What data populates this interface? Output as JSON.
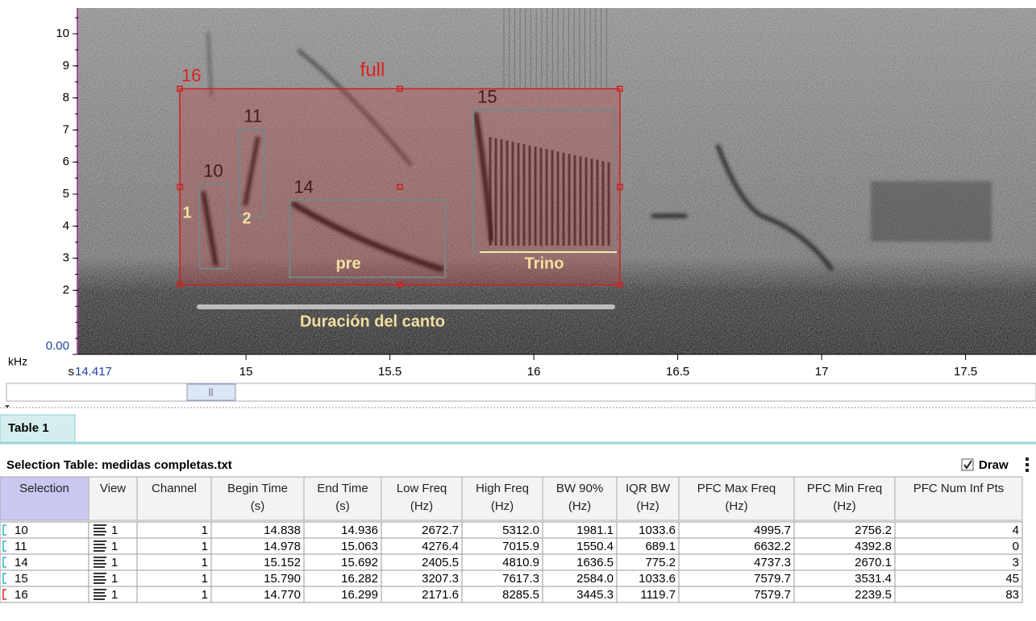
{
  "spectrogram": {
    "y_unit": "kHz",
    "yticks": [
      "10",
      "9",
      "8",
      "7",
      "6",
      "5",
      "4",
      "3",
      "2",
      "0.00"
    ],
    "time_unit": "s",
    "time_start": "14.417",
    "xticks": [
      "15",
      "15.5",
      "16",
      "16.5",
      "17",
      "17.5"
    ]
  },
  "annotations": {
    "full": "full",
    "mark_1": "1",
    "mark_2": "2",
    "pre": "pre",
    "trill": "Trino",
    "duration": "Duración del canto"
  },
  "tab": "Table 1",
  "table_title": "Selection Table: medidas completas.txt",
  "draw": "Draw",
  "table": {
    "columns": [
      [
        "Selection"
      ],
      [
        "View"
      ],
      [
        "Channel"
      ],
      [
        "Begin Time",
        "(s)"
      ],
      [
        "End Time",
        "(s)"
      ],
      [
        "Low Freq",
        "(Hz)"
      ],
      [
        "High Freq",
        "(Hz)"
      ],
      [
        "BW 90%",
        "(Hz)"
      ],
      [
        "IQR BW",
        "(Hz)"
      ],
      [
        "PFC Max Freq",
        "(Hz)"
      ],
      [
        "PFC Min Freq",
        "(Hz)"
      ],
      [
        "PFC Num Inf Pts"
      ]
    ],
    "rows": [
      [
        "10",
        "1",
        "1",
        "14.838",
        "14.936",
        "2672.7",
        "5312.0",
        "1981.1",
        "1033.6",
        "4995.7",
        "2756.2",
        "4"
      ],
      [
        "11",
        "1",
        "1",
        "14.978",
        "15.063",
        "4276.4",
        "7015.9",
        "1550.4",
        "689.1",
        "6632.2",
        "4392.8",
        "0"
      ],
      [
        "14",
        "1",
        "1",
        "15.152",
        "15.692",
        "2405.5",
        "4810.9",
        "1636.5",
        "775.2",
        "4737.3",
        "2670.1",
        "3"
      ],
      [
        "15",
        "1",
        "1",
        "15.790",
        "16.282",
        "3207.3",
        "7617.3",
        "2584.0",
        "1033.6",
        "7579.7",
        "3531.4",
        "45"
      ],
      [
        "16",
        "1",
        "1",
        "14.770",
        "16.299",
        "2171.6",
        "8285.5",
        "3445.3",
        "1119.7",
        "7579.7",
        "2239.5",
        "83"
      ]
    ]
  }
}
